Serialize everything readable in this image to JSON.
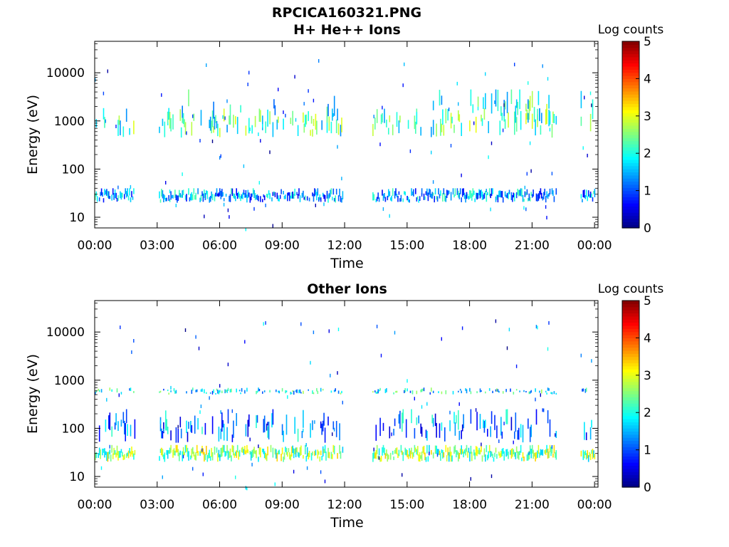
{
  "figure": {
    "title": "RPCICA160321.PNG"
  },
  "colorbar": {
    "label": "Log counts",
    "ticks": [
      "0",
      "1",
      "2",
      "3",
      "4",
      "5"
    ],
    "range": [
      0,
      5
    ]
  },
  "chart_data": [
    {
      "type": "heatmap",
      "title": "H+ He++ Ions",
      "xlabel": "Time",
      "ylabel": "Energy (eV)",
      "yscale": "log",
      "ylim": [
        6,
        45000
      ],
      "xlim": [
        "00:00",
        "24:10"
      ],
      "x_ticks": [
        "00:00",
        "03:00",
        "06:00",
        "09:00",
        "12:00",
        "15:00",
        "18:00",
        "21:00",
        "00:00"
      ],
      "y_ticks": [
        "10",
        "100",
        "1000",
        "10000"
      ],
      "colorbar_label": "Log counts",
      "colorbar_range": [
        0,
        5
      ],
      "data_intervals": [
        [
          "00:00",
          "01:55"
        ],
        [
          "03:05",
          "11:55"
        ],
        [
          "13:20",
          "22:10"
        ],
        [
          "23:20",
          "24:00"
        ]
      ],
      "bands": [
        {
          "energy_eV": [
            20,
            40
          ],
          "log_counts": 1.4,
          "description": "low-energy band"
        },
        {
          "energy_eV": [
            450,
            1800
          ],
          "log_counts": 2.2,
          "description": "mid-energy band"
        },
        {
          "energy_eV": [
            800,
            4500
          ],
          "log_counts": 2.0,
          "description": "enhanced 18:00-22:00"
        }
      ]
    },
    {
      "type": "heatmap",
      "title": "Other Ions",
      "xlabel": "Time",
      "ylabel": "Energy (eV)",
      "yscale": "log",
      "ylim": [
        6,
        45000
      ],
      "xlim": [
        "00:00",
        "24:10"
      ],
      "x_ticks": [
        "00:00",
        "03:00",
        "06:00",
        "09:00",
        "12:00",
        "15:00",
        "18:00",
        "21:00",
        "00:00"
      ],
      "y_ticks": [
        "10",
        "100",
        "1000",
        "10000"
      ],
      "colorbar_label": "Log counts",
      "colorbar_range": [
        0,
        5
      ],
      "data_intervals": [
        [
          "00:00",
          "01:55"
        ],
        [
          "03:05",
          "11:55"
        ],
        [
          "13:20",
          "22:10"
        ],
        [
          "23:20",
          "24:00"
        ]
      ],
      "bands": [
        {
          "energy_eV": [
            20,
            45
          ],
          "log_counts": 2.5,
          "description": "low-energy band"
        },
        {
          "energy_eV": [
            50,
            250
          ],
          "log_counts": 1.3,
          "description": "spread above band"
        },
        {
          "energy_eV": [
            500,
            700
          ],
          "log_counts": 1.8,
          "description": "faint mid band"
        }
      ]
    }
  ]
}
